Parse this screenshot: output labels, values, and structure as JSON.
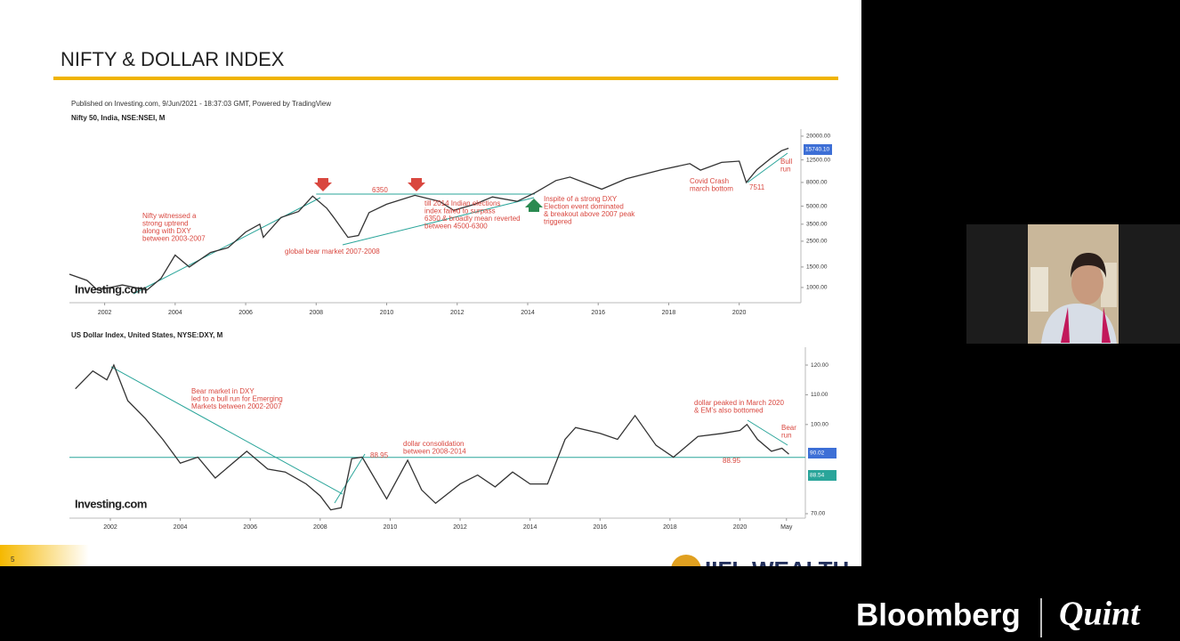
{
  "slide": {
    "title": "NIFTY & DOLLAR INDEX",
    "published": "Published on Investing.com, 9/Jun/2021 - 18:37:03 GMT, Powered by TradingView",
    "page_number": "5",
    "logo": "IIFL WEALTH"
  },
  "broadcast": {
    "left": "Bloomberg",
    "right": "Quint"
  },
  "chart_data": [
    {
      "type": "line",
      "title": "Nifty 50, India, NSE:NSEI, M",
      "watermark": "Investing.com",
      "color": "#333333",
      "log_scale": true,
      "x": [
        2001.0,
        2001.5,
        2001.8,
        2002.5,
        2003.2,
        2003.6,
        2004.0,
        2004.4,
        2005.0,
        2005.5,
        2006.0,
        2006.4,
        2006.5,
        2007.0,
        2007.5,
        2007.9,
        2008.3,
        2008.5,
        2008.9,
        2009.2,
        2009.5,
        2010.0,
        2010.8,
        2011.5,
        2011.9,
        2012.5,
        2013.0,
        2013.7,
        2014.2,
        2014.8,
        2015.2,
        2016.1,
        2016.8,
        2017.8,
        2018.6,
        2018.9,
        2019.5,
        2020.0,
        2020.2,
        2020.5,
        2020.9,
        2021.2,
        2021.4
      ],
      "values": [
        1300,
        1150,
        950,
        1050,
        950,
        1200,
        1900,
        1500,
        2000,
        2200,
        3000,
        3500,
        2700,
        4000,
        4500,
        6100,
        4800,
        4000,
        2700,
        2800,
        4400,
        5200,
        6200,
        5500,
        4600,
        5200,
        6000,
        5500,
        6500,
        8300,
        8900,
        7000,
        8600,
        10300,
        11600,
        10200,
        11900,
        12200,
        8000,
        10300,
        12900,
        15000,
        15740.1
      ],
      "xlim": [
        2001,
        2021.75
      ],
      "xticks": [
        2002,
        2004,
        2006,
        2008,
        2010,
        2012,
        2014,
        2016,
        2018,
        2020
      ],
      "ylim": [
        740,
        23000
      ],
      "yticks": [
        {
          "value": 1000,
          "label": "1000.00"
        },
        {
          "value": 1500,
          "label": "1500.00"
        },
        {
          "value": 2500,
          "label": "2500.00"
        },
        {
          "value": 3500,
          "label": "3500.00"
        },
        {
          "value": 5000,
          "label": "5000.00"
        },
        {
          "value": 8000,
          "label": "8000.00"
        },
        {
          "value": 12500,
          "label": "12500.00"
        },
        {
          "value": 20000,
          "label": "20000.00"
        }
      ],
      "reference_line": 6350,
      "price_tags": [
        "15740.10"
      ],
      "annotations": [
        [
          "Nifty witnessed a",
          "strong uptrend",
          "along with DXY",
          "between 2003-2007"
        ],
        [
          "6350"
        ],
        [
          "global bear market 2007-2008"
        ],
        [
          "till 2014 Indian elections",
          "index failed to surpass",
          "6350 & broadly mean reverted",
          "between 4500-6300"
        ],
        [
          "Inspite of a strong DXY",
          "Election event dominated",
          "& breakout above 2007 peak",
          "triggered"
        ],
        [
          "Covid Crash",
          "march bottom"
        ],
        [
          "7511"
        ],
        [
          "Bull",
          "run"
        ]
      ]
    },
    {
      "type": "line",
      "title": "US Dollar Index, United States, NYSE:DXY, M",
      "watermark": "Investing.com",
      "color": "#333333",
      "log_scale": false,
      "x": [
        2001.0,
        2001.5,
        2001.9,
        2002.1,
        2002.5,
        2003.0,
        2003.5,
        2004.0,
        2004.5,
        2005.0,
        2005.9,
        2006.5,
        2007.0,
        2007.6,
        2008.0,
        2008.3,
        2008.6,
        2008.9,
        2009.2,
        2009.9,
        2010.5,
        2010.9,
        2011.3,
        2012.0,
        2012.5,
        2013.0,
        2013.5,
        2014.0,
        2014.5,
        2015.0,
        2015.3,
        2016.0,
        2016.5,
        2017.0,
        2017.6,
        2018.1,
        2018.8,
        2019.5,
        2020.0,
        2020.2,
        2020.5,
        2020.9,
        2021.2,
        2021.4
      ],
      "values": [
        112,
        118,
        115,
        120,
        108,
        102,
        95,
        87,
        89,
        82,
        91,
        85,
        84,
        80,
        76,
        71.3,
        72,
        88.5,
        89,
        75,
        88,
        78,
        73.5,
        80,
        83,
        79,
        84,
        80,
        80,
        95,
        99,
        97,
        95,
        103,
        93,
        89,
        96,
        97,
        98,
        100,
        95,
        91,
        92,
        90.02
      ],
      "xlim": [
        2000.83,
        2021.87
      ],
      "xticks": [
        2002,
        2004,
        2006,
        2008,
        2010,
        2012,
        2014,
        2016,
        2018,
        2020,
        {
          "value": 2021.33,
          "label": "May"
        }
      ],
      "ylim": [
        68.5,
        126
      ],
      "yticks": [
        {
          "value": 70,
          "label": "70.00"
        },
        {
          "value": 100,
          "label": "100.00"
        },
        {
          "value": 110,
          "label": "110.00"
        },
        {
          "value": 120,
          "label": "120.00"
        }
      ],
      "reference_line": 88.95,
      "price_tags": [
        "90.02",
        "88.54"
      ],
      "annotations": [
        [
          "Bear market in DXY",
          "led to a bull run for Emerging",
          "Markets between 2002-2007"
        ],
        [
          "88.95"
        ],
        [
          "dollar consolidation",
          "between 2008-2014"
        ],
        [
          "dollar peaked in March 2020",
          "& EM's also bottomed"
        ],
        [
          "Bear",
          "run"
        ],
        [
          "88.95"
        ]
      ]
    }
  ]
}
